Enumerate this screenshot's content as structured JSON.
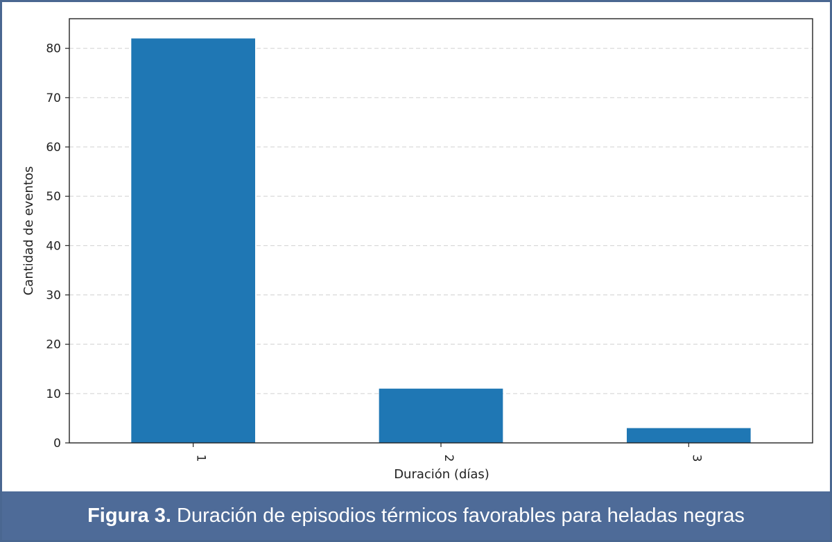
{
  "chart_data": {
    "type": "bar",
    "categories": [
      "1",
      "2",
      "3"
    ],
    "values": [
      82,
      11,
      3
    ],
    "xlabel": "Duración (días)",
    "ylabel": "Cantidad de eventos",
    "ylim": [
      0,
      86
    ],
    "yticks": [
      0,
      10,
      20,
      30,
      40,
      50,
      60,
      70,
      80
    ],
    "grid": "horizontal dashed",
    "bar_color": "#1f77b4",
    "x_tick_rotation": "vertical"
  },
  "caption": {
    "label": "Figura 3.",
    "text": " Duración de episodios térmicos favorables para heladas negras"
  },
  "colors": {
    "caption_background": "#4e6b98",
    "frame_border": "#4a6791"
  }
}
